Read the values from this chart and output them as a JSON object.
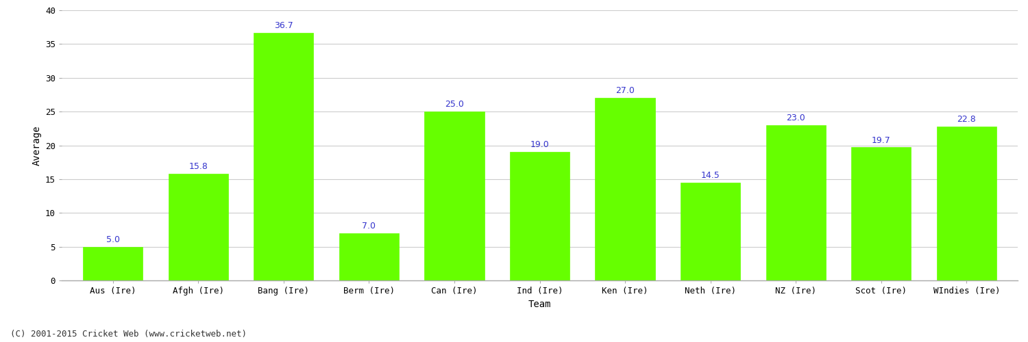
{
  "xlabel": "Team",
  "ylabel": "Average",
  "categories": [
    "Aus (Ire)",
    "Afgh (Ire)",
    "Bang (Ire)",
    "Berm (Ire)",
    "Can (Ire)",
    "Ind (Ire)",
    "Ken (Ire)",
    "Neth (Ire)",
    "NZ (Ire)",
    "Scot (Ire)",
    "WIndies (Ire)"
  ],
  "values": [
    5.0,
    15.8,
    36.7,
    7.0,
    25.0,
    19.0,
    27.0,
    14.5,
    23.0,
    19.7,
    22.8
  ],
  "bar_color": "#66ff00",
  "bar_edge_color": "#66ff00",
  "label_color": "#3333cc",
  "label_fontsize": 9,
  "ylim": [
    0,
    40
  ],
  "yticks": [
    0,
    5,
    10,
    15,
    20,
    25,
    30,
    35,
    40
  ],
  "grid_color": "#cccccc",
  "background_color": "#ffffff",
  "fig_background_color": "#ffffff",
  "footer_text": "(C) 2001-2015 Cricket Web (www.cricketweb.net)",
  "footer_fontsize": 9,
  "footer_color": "#333333",
  "axis_label_fontsize": 10,
  "tick_fontsize": 9,
  "bar_width": 0.7
}
